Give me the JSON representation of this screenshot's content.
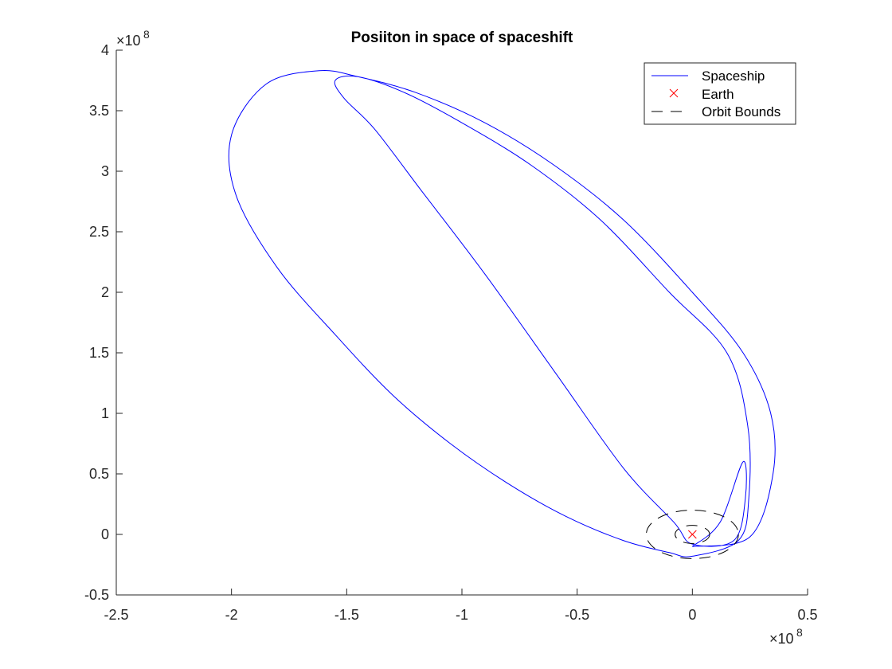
{
  "chart_data": {
    "type": "line",
    "title": "Posiiton in space of spaceshift",
    "xlabel": "",
    "ylabel": "",
    "xlim": [
      -250000000.0,
      50000000.0
    ],
    "ylim": [
      -50000000.0,
      400000000.0
    ],
    "x_exponent_label": "×10",
    "x_exponent": "8",
    "y_exponent_label": "×10",
    "y_exponent": "8",
    "xticks": [
      -2.5,
      -2,
      -1.5,
      -1,
      -0.5,
      0,
      0.5
    ],
    "xtick_labels": [
      "-2.5",
      "-2",
      "-1.5",
      "-1",
      "-0.5",
      "0",
      "0.5"
    ],
    "yticks": [
      -0.5,
      0,
      0.5,
      1,
      1.5,
      2,
      2.5,
      3,
      3.5,
      4
    ],
    "ytick_labels": [
      "-0.5",
      "0",
      "0.5",
      "1",
      "1.5",
      "2",
      "2.5",
      "3",
      "3.5",
      "4"
    ],
    "grid": false,
    "legend_position": "top-right",
    "series": [
      {
        "name": "Spaceship",
        "style": "solid",
        "color": "#0000ff",
        "x": [
          0,
          25000000.0,
          35000000.0,
          34000000.0,
          22000000.0,
          0,
          -30000000.0,
          -60000000.0,
          -90000000.0,
          -120000000.0,
          -145000000.0,
          -162000000.0,
          -185000000.0,
          -200000000.0,
          -198000000.0,
          -180000000.0,
          -155000000.0,
          -130000000.0,
          -105000000.0,
          -80000000.0,
          -55000000.0,
          -30000000.0,
          -10000000.0,
          0,
          20000000.0,
          24500000.0,
          24000000.0,
          15000000.0,
          -10000000.0,
          -40000000.0,
          -70000000.0,
          -100000000.0,
          -125000000.0,
          -145000000.0,
          -155000000.0,
          -151000000.0,
          -138000000.0,
          -118000000.0,
          -90000000.0,
          -60000000.0,
          -30000000.0,
          -8000000.0,
          0,
          18000000.0,
          23000000.0,
          22000000.0,
          12000000.0,
          0
        ],
        "y": [
          -10000000.0,
          -2000000.0,
          50000000.0,
          100000000.0,
          150000000.0,
          200000000.0,
          260000000.0,
          305000000.0,
          340000000.0,
          365000000.0,
          378000000.0,
          383000000.0,
          372000000.0,
          330000000.0,
          280000000.0,
          220000000.0,
          165000000.0,
          115000000.0,
          75000000.0,
          42000000.0,
          15000000.0,
          -5000000.0,
          -15000000.0,
          -18000000.0,
          -5000000.0,
          30000000.0,
          90000000.0,
          150000000.0,
          200000000.0,
          260000000.0,
          305000000.0,
          340000000.0,
          365000000.0,
          378000000.0,
          375000000.0,
          360000000.0,
          335000000.0,
          285000000.0,
          215000000.0,
          135000000.0,
          55000000.0,
          10000000.0,
          -8000000.0,
          -5000000.0,
          30000000.0,
          60000000.0,
          10000000.0,
          -10000000.0
        ]
      },
      {
        "name": "Earth",
        "style": "marker-x",
        "color": "#ff0000",
        "x": [
          0
        ],
        "y": [
          0
        ]
      },
      {
        "name": "Orbit Bounds",
        "style": "dashed",
        "color": "#000000",
        "circles": [
          {
            "cx": 0,
            "cy": 0,
            "r": 20000000.0
          },
          {
            "cx": 0,
            "cy": 0,
            "r": 7500000.0
          }
        ]
      }
    ]
  }
}
